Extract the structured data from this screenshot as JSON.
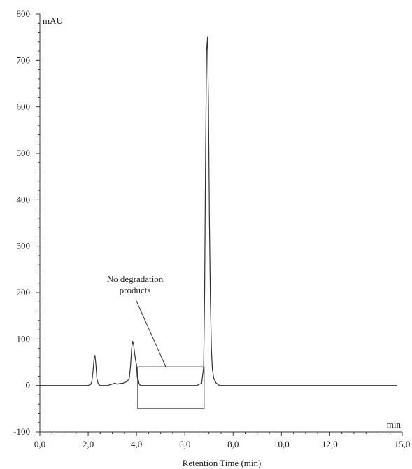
{
  "chart_data": {
    "type": "line",
    "title": "",
    "xlabel": "Retention Time (min)",
    "ylabel": "",
    "x_unit_label": "min",
    "y_unit_label": "mAU",
    "xlim": [
      0,
      15
    ],
    "ylim": [
      -100,
      800
    ],
    "grid": false,
    "x_ticks": [
      0,
      2,
      4,
      6,
      8,
      10,
      12,
      15
    ],
    "x_tick_labels": [
      "0,0",
      "2,0",
      "4,0",
      "6,0",
      "8,0",
      "10,0",
      "12,0",
      "15,0"
    ],
    "y_ticks": [
      -100,
      0,
      100,
      200,
      300,
      400,
      500,
      600,
      700,
      800
    ],
    "y_tick_labels": [
      "-100",
      "0",
      "100",
      "200",
      "300",
      "400",
      "500",
      "600",
      "700",
      "800"
    ],
    "series": [
      {
        "color": "#333333",
        "x": [
          0,
          2.0,
          2.1,
          2.15,
          2.2,
          2.24,
          2.28,
          2.32,
          2.36,
          2.42,
          2.5,
          2.8,
          3.0,
          3.1,
          3.2,
          3.3,
          3.45,
          3.6,
          3.7,
          3.75,
          3.8,
          3.84,
          3.88,
          3.92,
          3.96,
          4.0,
          4.03,
          4.06,
          4.08,
          4.1,
          4.14,
          4.2,
          4.3,
          5.0,
          6.0,
          6.5,
          6.7,
          6.78,
          6.82,
          6.86,
          6.9,
          6.94,
          6.98,
          7.02,
          7.06,
          7.1,
          7.14,
          7.2,
          7.3,
          7.4,
          7.5,
          8.0,
          10.0,
          12.0,
          14.8
        ],
        "y": [
          0,
          0,
          2,
          8,
          30,
          55,
          65,
          45,
          15,
          3,
          0,
          0,
          3,
          5,
          3,
          4,
          5,
          8,
          15,
          40,
          80,
          95,
          88,
          70,
          55,
          45,
          20,
          8,
          12,
          5,
          1,
          0,
          0,
          0,
          0,
          0,
          5,
          40,
          200,
          500,
          720,
          750,
          600,
          350,
          180,
          80,
          35,
          15,
          5,
          1,
          0,
          0,
          0,
          0,
          0
        ]
      }
    ],
    "annotation": {
      "text_lines": [
        "No degradation",
        "products"
      ],
      "box_x": [
        4.05,
        6.8
      ],
      "box_y": [
        -50,
        40
      ]
    }
  }
}
